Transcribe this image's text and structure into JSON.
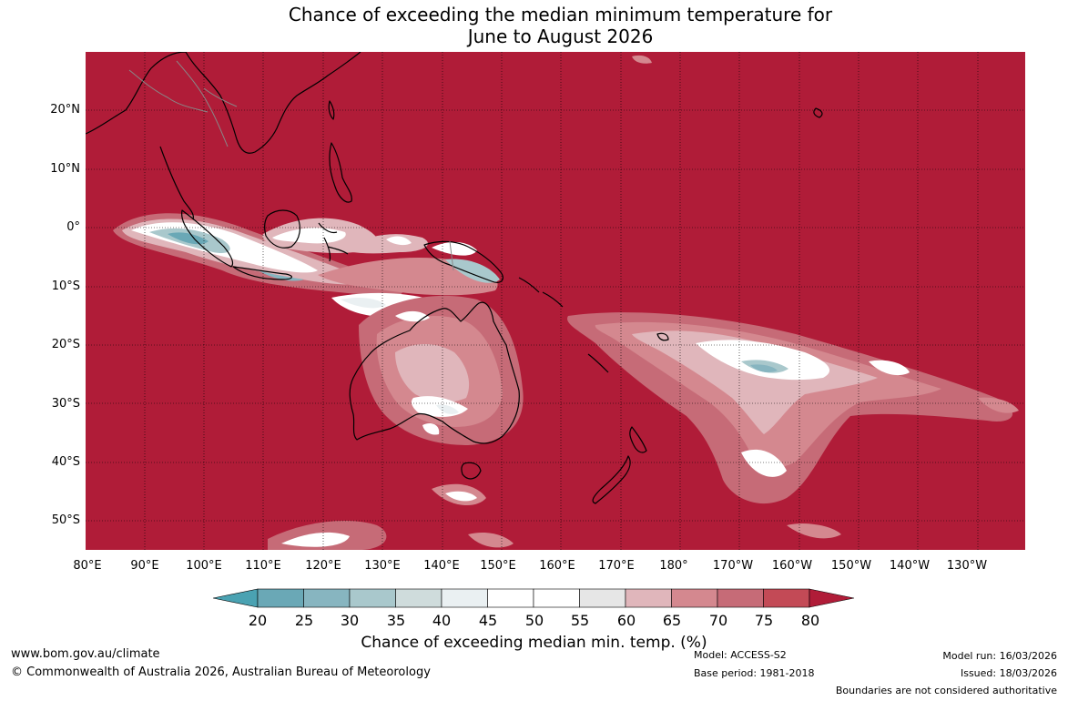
{
  "title": {
    "line1": "Chance of exceeding the median minimum temperature for",
    "line2": "June to August 2026"
  },
  "map": {
    "projection": "equirectangular",
    "lon_range": [
      80,
      238
    ],
    "lat_range": [
      -55,
      29
    ],
    "background_color": "#b01c38",
    "coastline_color": "#000000",
    "border_color": "#888888",
    "grid_lines": true,
    "lat_tick_labels": [
      "20°N",
      "10°N",
      "0°",
      "10°S",
      "20°S",
      "30°S",
      "40°S",
      "50°S"
    ],
    "lon_tick_labels": [
      "80°E",
      "90°E",
      "100°E",
      "110°E",
      "120°E",
      "130°E",
      "140°E",
      "150°E",
      "160°E",
      "170°E",
      "180°",
      "170°W",
      "160°W",
      "150°W",
      "140°W",
      "130°W"
    ]
  },
  "colorbar": {
    "label": "Chance of exceeding median min. temp. (%)",
    "tick_labels": [
      "20",
      "25",
      "30",
      "35",
      "40",
      "45",
      "50",
      "55",
      "60",
      "65",
      "70",
      "75",
      "80"
    ],
    "colors": [
      "#6aa8b6",
      "#87b5c0",
      "#a9c8cc",
      "#cfdcdc",
      "#eaf0f2",
      "#ffffff",
      "#ffffff",
      "#e6e6e6",
      "#e0b6bb",
      "#d4888f",
      "#c66b77",
      "#c34a56"
    ],
    "under_color": "#4aa2b2",
    "over_color": "#b01c38"
  },
  "footer": {
    "website": "www.bom.gov.au/climate",
    "copyright": "© Commonwealth of Australia 2026, Australian Bureau of Meteorology",
    "model": "Model: ACCESS-S2",
    "base_period": "Base period: 1981-2018",
    "model_run": "Model run: 16/03/2026",
    "issued": "Issued: 18/03/2026",
    "disclaimer": "Boundaries are not considered authoritative"
  }
}
